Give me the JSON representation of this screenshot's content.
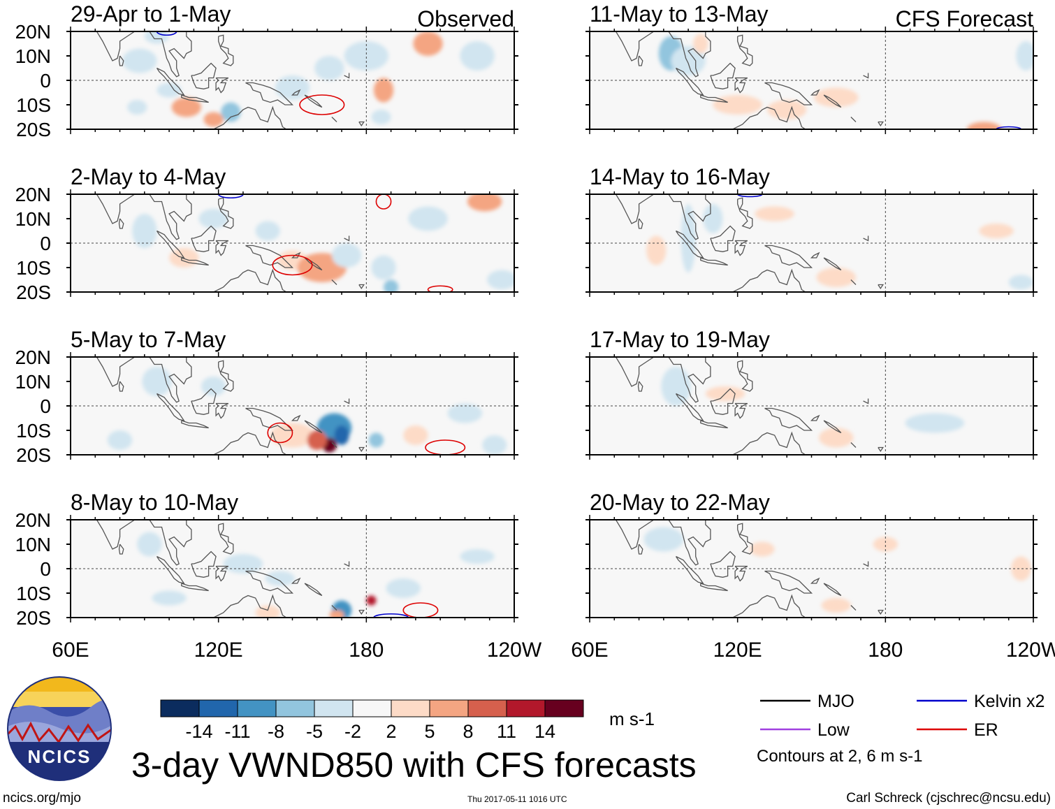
{
  "figure_title": "3-day VWND850 with CFS forecasts",
  "footer": {
    "url": "ncics.org/mjo",
    "timestamp": "Thu 2017-05-11 1016 UTC",
    "author": "Carl Schreck (cjschrec@ncsu.edu)"
  },
  "logo": {
    "text": "NCICS"
  },
  "colorbar": {
    "units": "m s-1",
    "ticks": [
      "-14",
      "-11",
      "-8",
      "-5",
      "-2",
      "2",
      "5",
      "8",
      "11",
      "14"
    ],
    "colors": [
      "#0b2c5e",
      "#2166ac",
      "#4393c3",
      "#92c5de",
      "#d1e5f0",
      "#f7f7f7",
      "#fddbc7",
      "#f4a582",
      "#d6604d",
      "#b2182b",
      "#67001f"
    ]
  },
  "legend": {
    "items": [
      {
        "label": "MJO",
        "color": "#000000"
      },
      {
        "label": "Kelvin x2",
        "color": "#0000cc"
      },
      {
        "label": "Low",
        "color": "#a040e0"
      },
      {
        "label": "ER",
        "color": "#dd0000"
      }
    ],
    "note": "Contours at 2, 6 m s-1"
  },
  "chart_data": {
    "type": "heatmap",
    "variable": "850-hPa meridional wind anomaly",
    "units": "m s-1",
    "x_ticks": [
      "60E",
      "120E",
      "180",
      "120W"
    ],
    "y_ticks": [
      "20N",
      "10N",
      "0",
      "10S",
      "20S"
    ],
    "xlim": [
      60,
      240
    ],
    "ylim": [
      -20,
      20
    ],
    "columns": [
      {
        "header": "Observed",
        "panels": [
          {
            "title": "29-Apr to 1-May",
            "blobs": [
              {
                "lon": 88,
                "lat": 8,
                "v": -3,
                "rx": 7,
                "ry": 5
              },
              {
                "lon": 87,
                "lat": -11,
                "v": -5,
                "rx": 4,
                "ry": 3
              },
              {
                "lon": 107,
                "lat": -11,
                "v": 5,
                "rx": 6,
                "ry": 4
              },
              {
                "lon": 125,
                "lat": -13,
                "v": -7,
                "rx": 4,
                "ry": 4
              },
              {
                "lon": 118,
                "lat": -16,
                "v": 6,
                "rx": 4,
                "ry": 3
              },
              {
                "lon": 150,
                "lat": -3,
                "v": -3,
                "rx": 7,
                "ry": 5
              },
              {
                "lon": 165,
                "lat": 5,
                "v": -3,
                "rx": 6,
                "ry": 5
              },
              {
                "lon": 180,
                "lat": 10,
                "v": -3,
                "rx": 9,
                "ry": 6
              },
              {
                "lon": 187,
                "lat": -4,
                "v": 6,
                "rx": 4,
                "ry": 5
              },
              {
                "lon": 186,
                "lat": -15,
                "v": -3,
                "rx": 4,
                "ry": 3
              },
              {
                "lon": 205,
                "lat": 15,
                "v": 7,
                "rx": 6,
                "ry": 5
              },
              {
                "lon": 225,
                "lat": 10,
                "v": -3,
                "rx": 7,
                "ry": 6
              },
              {
                "lon": 100,
                "lat": -4,
                "v": -3,
                "rx": 5,
                "ry": 3
              },
              {
                "lon": 95,
                "lat": 18,
                "v": -3,
                "rx": 5,
                "ry": 3
              }
            ],
            "contours": [
              {
                "lon": 162,
                "lat": -10,
                "rx": 9,
                "ry": 4,
                "type": "ER"
              },
              {
                "lon": 99,
                "lat": 20,
                "rx": 4,
                "ry": 1.5,
                "type": "Kelvin x2"
              }
            ]
          },
          {
            "title": "2-May to 4-May",
            "blobs": [
              {
                "lon": 90,
                "lat": 5,
                "v": -3,
                "rx": 5,
                "ry": 7
              },
              {
                "lon": 106,
                "lat": -6,
                "v": 4,
                "rx": 6,
                "ry": 4
              },
              {
                "lon": 118,
                "lat": 10,
                "v": -3,
                "rx": 6,
                "ry": 4
              },
              {
                "lon": 150,
                "lat": -7,
                "v": 3,
                "rx": 6,
                "ry": 4
              },
              {
                "lon": 162,
                "lat": -10,
                "v": 7,
                "rx": 10,
                "ry": 6
              },
              {
                "lon": 172,
                "lat": -5,
                "v": -3,
                "rx": 6,
                "ry": 5
              },
              {
                "lon": 187,
                "lat": -10,
                "v": -5,
                "rx": 5,
                "ry": 5
              },
              {
                "lon": 190,
                "lat": -18,
                "v": -6,
                "rx": 3,
                "ry": 3
              },
              {
                "lon": 205,
                "lat": 10,
                "v": -3,
                "rx": 8,
                "ry": 5
              },
              {
                "lon": 228,
                "lat": 17,
                "v": 5,
                "rx": 7,
                "ry": 4
              },
              {
                "lon": 235,
                "lat": -15,
                "v": -3,
                "rx": 6,
                "ry": 4
              },
              {
                "lon": 140,
                "lat": 5,
                "v": -3,
                "rx": 5,
                "ry": 4
              },
              {
                "lon": 80,
                "lat": 13,
                "v": -2,
                "rx": 5,
                "ry": 4
              }
            ],
            "contours": [
              {
                "lon": 150,
                "lat": -9,
                "rx": 8,
                "ry": 4,
                "type": "ER"
              },
              {
                "lon": 187,
                "lat": 17,
                "rx": 3,
                "ry": 3,
                "type": "ER"
              },
              {
                "lon": 210,
                "lat": -19,
                "rx": 5,
                "ry": 1.5,
                "type": "ER"
              },
              {
                "lon": 125,
                "lat": 20,
                "rx": 5,
                "ry": 1.5,
                "type": "Kelvin x2"
              }
            ]
          },
          {
            "title": "5-May to 7-May",
            "blobs": [
              {
                "lon": 95,
                "lat": 10,
                "v": -3,
                "rx": 6,
                "ry": 6
              },
              {
                "lon": 118,
                "lat": 8,
                "v": -3,
                "rx": 5,
                "ry": 4
              },
              {
                "lon": 150,
                "lat": -12,
                "v": 4,
                "rx": 9,
                "ry": 5
              },
              {
                "lon": 167,
                "lat": -9,
                "v": -9,
                "rx": 7,
                "ry": 6
              },
              {
                "lon": 170,
                "lat": -12,
                "v": -14,
                "rx": 3,
                "ry": 4
              },
              {
                "lon": 165,
                "lat": -16,
                "v": 14,
                "rx": 3,
                "ry": 3
              },
              {
                "lon": 160,
                "lat": -14,
                "v": 8,
                "rx": 4,
                "ry": 4
              },
              {
                "lon": 184,
                "lat": -14,
                "v": -8,
                "rx": 3,
                "ry": 3
              },
              {
                "lon": 200,
                "lat": -12,
                "v": 4,
                "rx": 5,
                "ry": 4
              },
              {
                "lon": 232,
                "lat": -16,
                "v": -4,
                "rx": 5,
                "ry": 4
              },
              {
                "lon": 220,
                "lat": -3,
                "v": -3,
                "rx": 7,
                "ry": 4
              },
              {
                "lon": 80,
                "lat": -14,
                "v": -3,
                "rx": 5,
                "ry": 4
              }
            ],
            "contours": [
              {
                "lon": 145,
                "lat": -11,
                "rx": 5,
                "ry": 4,
                "type": "ER"
              },
              {
                "lon": 212,
                "lat": -17,
                "rx": 8,
                "ry": 3,
                "type": "ER"
              }
            ]
          },
          {
            "title": "8-May to 10-May",
            "blobs": [
              {
                "lon": 92,
                "lat": 10,
                "v": -3,
                "rx": 5,
                "ry": 5
              },
              {
                "lon": 130,
                "lat": 2,
                "v": -3,
                "rx": 8,
                "ry": 4
              },
              {
                "lon": 145,
                "lat": -4,
                "v": -3,
                "rx": 6,
                "ry": 3
              },
              {
                "lon": 170,
                "lat": -17,
                "v": -11,
                "rx": 4,
                "ry": 4
              },
              {
                "lon": 168,
                "lat": -19,
                "v": 7,
                "rx": 3,
                "ry": 2
              },
              {
                "lon": 182,
                "lat": -13,
                "v": 11,
                "rx": 2,
                "ry": 2
              },
              {
                "lon": 195,
                "lat": -8,
                "v": -3,
                "rx": 7,
                "ry": 4
              },
              {
                "lon": 225,
                "lat": 5,
                "v": -3,
                "rx": 7,
                "ry": 3
              },
              {
                "lon": 100,
                "lat": -12,
                "v": -3,
                "rx": 7,
                "ry": 3
              },
              {
                "lon": 140,
                "lat": -18,
                "v": 3,
                "rx": 5,
                "ry": 3
              }
            ],
            "contours": [
              {
                "lon": 202,
                "lat": -17,
                "rx": 7,
                "ry": 3,
                "type": "ER"
              },
              {
                "lon": 190,
                "lat": -20,
                "rx": 7,
                "ry": 1.5,
                "type": "Kelvin x2"
              }
            ]
          }
        ]
      },
      {
        "header": "CFS Forecast",
        "panels": [
          {
            "title": "11-May to 13-May",
            "blobs": [
              {
                "lon": 93,
                "lat": 11,
                "v": -6,
                "rx": 5,
                "ry": 7
              },
              {
                "lon": 100,
                "lat": 8,
                "v": -3,
                "rx": 7,
                "ry": 6
              },
              {
                "lon": 105,
                "lat": 15,
                "v": 4,
                "rx": 3,
                "ry": 4
              },
              {
                "lon": 120,
                "lat": -10,
                "v": 4,
                "rx": 10,
                "ry": 4
              },
              {
                "lon": 140,
                "lat": -12,
                "v": 3,
                "rx": 8,
                "ry": 4
              },
              {
                "lon": 160,
                "lat": -7,
                "v": 4,
                "rx": 9,
                "ry": 4
              },
              {
                "lon": 220,
                "lat": -20,
                "v": 6,
                "rx": 7,
                "ry": 3
              },
              {
                "lon": 210,
                "lat": 8,
                "v": -2,
                "rx": 9,
                "ry": 5
              },
              {
                "lon": 237,
                "lat": 10,
                "v": -3,
                "rx": 4,
                "ry": 6
              },
              {
                "lon": 150,
                "lat": 5,
                "v": -2,
                "rx": 6,
                "ry": 4
              }
            ],
            "contours": [
              {
                "lon": 230,
                "lat": -20,
                "rx": 5,
                "ry": 1,
                "type": "Kelvin x2"
              }
            ]
          },
          {
            "title": "14-May to 16-May",
            "blobs": [
              {
                "lon": 87,
                "lat": -3,
                "v": 3,
                "rx": 4,
                "ry": 6
              },
              {
                "lon": 100,
                "lat": 2,
                "v": -3,
                "rx": 3,
                "ry": 14
              },
              {
                "lon": 110,
                "lat": 10,
                "v": -3,
                "rx": 4,
                "ry": 6
              },
              {
                "lon": 135,
                "lat": 12,
                "v": 3,
                "rx": 8,
                "ry": 3
              },
              {
                "lon": 150,
                "lat": -5,
                "v": -2,
                "rx": 7,
                "ry": 4
              },
              {
                "lon": 160,
                "lat": -14,
                "v": 3,
                "rx": 8,
                "ry": 4
              },
              {
                "lon": 205,
                "lat": 14,
                "v": -2,
                "rx": 12,
                "ry": 3
              },
              {
                "lon": 225,
                "lat": 5,
                "v": 3,
                "rx": 7,
                "ry": 3
              },
              {
                "lon": 235,
                "lat": -16,
                "v": -3,
                "rx": 5,
                "ry": 3
              }
            ],
            "contours": [
              {
                "lon": 125,
                "lat": 20,
                "rx": 5,
                "ry": 1,
                "type": "Kelvin x2"
              }
            ]
          },
          {
            "title": "17-May to 19-May",
            "blobs": [
              {
                "lon": 95,
                "lat": 8,
                "v": -3,
                "rx": 6,
                "ry": 8
              },
              {
                "lon": 115,
                "lat": 5,
                "v": 3,
                "rx": 8,
                "ry": 3
              },
              {
                "lon": 135,
                "lat": 8,
                "v": -2,
                "rx": 6,
                "ry": 4
              },
              {
                "lon": 160,
                "lat": -13,
                "v": 3,
                "rx": 7,
                "ry": 4
              },
              {
                "lon": 200,
                "lat": -7,
                "v": -3,
                "rx": 12,
                "ry": 4
              },
              {
                "lon": 235,
                "lat": 15,
                "v": -2,
                "rx": 5,
                "ry": 5
              }
            ],
            "contours": []
          },
          {
            "title": "20-May to 22-May",
            "blobs": [
              {
                "lon": 90,
                "lat": 12,
                "v": -3,
                "rx": 8,
                "ry": 5
              },
              {
                "lon": 130,
                "lat": 8,
                "v": 2,
                "rx": 5,
                "ry": 3
              },
              {
                "lon": 140,
                "lat": -5,
                "v": -2,
                "rx": 7,
                "ry": 3
              },
              {
                "lon": 180,
                "lat": 10,
                "v": 3,
                "rx": 5,
                "ry": 3
              },
              {
                "lon": 235,
                "lat": 0,
                "v": 4,
                "rx": 4,
                "ry": 5
              },
              {
                "lon": 105,
                "lat": -10,
                "v": -2,
                "rx": 6,
                "ry": 3
              },
              {
                "lon": 160,
                "lat": -15,
                "v": 2,
                "rx": 6,
                "ry": 3
              }
            ],
            "contours": []
          }
        ]
      }
    ]
  }
}
